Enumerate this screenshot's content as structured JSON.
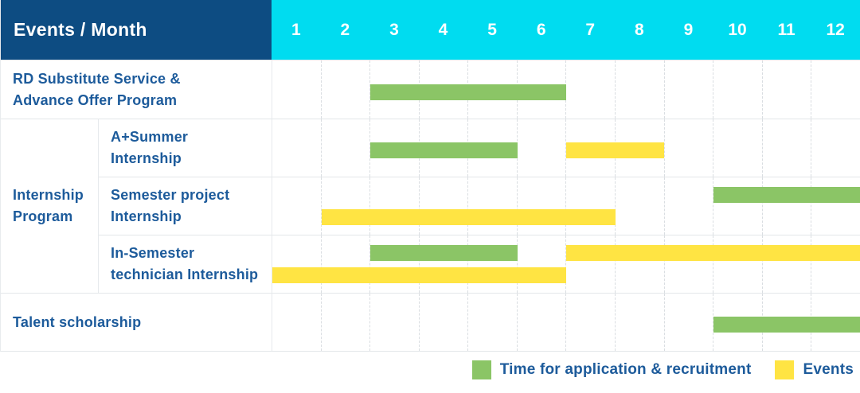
{
  "header": {
    "title": "Events / Month",
    "months": [
      "1",
      "2",
      "3",
      "4",
      "5",
      "6",
      "7",
      "8",
      "9",
      "10",
      "11",
      "12"
    ]
  },
  "colors": {
    "header_bg": "#0d4c82",
    "months_bg": "#00dcf0",
    "header_text": "#ffffff",
    "label_text": "#1d5b9b",
    "green": "#8bc566",
    "yellow": "#ffe443",
    "grid_line": "#d9dde1",
    "row_border": "#e3e6e9"
  },
  "group_label": "Internship Program",
  "group_label_lines": [
    "Internship",
    "Program"
  ],
  "legend": [
    {
      "series": "Time for application & recruitment",
      "color_key": "green",
      "swatch": "#8bc566"
    },
    {
      "series": "Events",
      "color_key": "yellow",
      "swatch": "#ffe443"
    }
  ],
  "chart_data": {
    "type": "gantt",
    "x_axis": {
      "label": "Month",
      "ticks": [
        1,
        2,
        3,
        4,
        5,
        6,
        7,
        8,
        9,
        10,
        11,
        12
      ],
      "range": [
        1,
        12
      ]
    },
    "series_legend": [
      "Time for application & recruitment",
      "Events"
    ],
    "rows": [
      {
        "label": "RD Substitute Service & Advance Offer Program",
        "label_lines": [
          "RD Substitute Service &",
          "Advance Offer Program"
        ],
        "group": null,
        "lanes": 1,
        "bars": [
          {
            "series": "Time for application & recruitment",
            "color_key": "green",
            "start_month": 3,
            "end_month": 6,
            "lane": 0
          }
        ]
      },
      {
        "label": "A+Summer Internship",
        "label_lines": [
          "A+Summer",
          "Internship"
        ],
        "group": "Internship Program",
        "lanes": 1,
        "bars": [
          {
            "series": "Time for application & recruitment",
            "color_key": "green",
            "start_month": 3,
            "end_month": 5,
            "lane": 0
          },
          {
            "series": "Events",
            "color_key": "yellow",
            "start_month": 7,
            "end_month": 8,
            "lane": 0
          }
        ]
      },
      {
        "label": "Semester project Internship",
        "label_lines": [
          "Semester project",
          "Internship"
        ],
        "group": "Internship Program",
        "lanes": 2,
        "bars": [
          {
            "series": "Time for application & recruitment",
            "color_key": "green",
            "start_month": 10,
            "end_month": 12,
            "lane": 0
          },
          {
            "series": "Events",
            "color_key": "yellow",
            "start_month": 2,
            "end_month": 7,
            "lane": 1
          }
        ]
      },
      {
        "label": "In-Semester technician Internship",
        "label_lines": [
          "In-Semester",
          "technician Internship"
        ],
        "group": "Internship Program",
        "lanes": 2,
        "bars": [
          {
            "series": "Time for application & recruitment",
            "color_key": "green",
            "start_month": 3,
            "end_month": 5,
            "lane": 0
          },
          {
            "series": "Events",
            "color_key": "yellow",
            "start_month": 7,
            "end_month": 12,
            "lane": 0
          },
          {
            "series": "Events",
            "color_key": "yellow",
            "start_month": 1,
            "end_month": 6,
            "lane": 1
          }
        ]
      },
      {
        "label": "Talent scholarship",
        "label_lines": [
          "Talent scholarship"
        ],
        "group": null,
        "lanes": 1,
        "bars": [
          {
            "series": "Time for application & recruitment",
            "color_key": "green",
            "start_month": 10,
            "end_month": 12,
            "lane": 0
          }
        ]
      }
    ]
  }
}
